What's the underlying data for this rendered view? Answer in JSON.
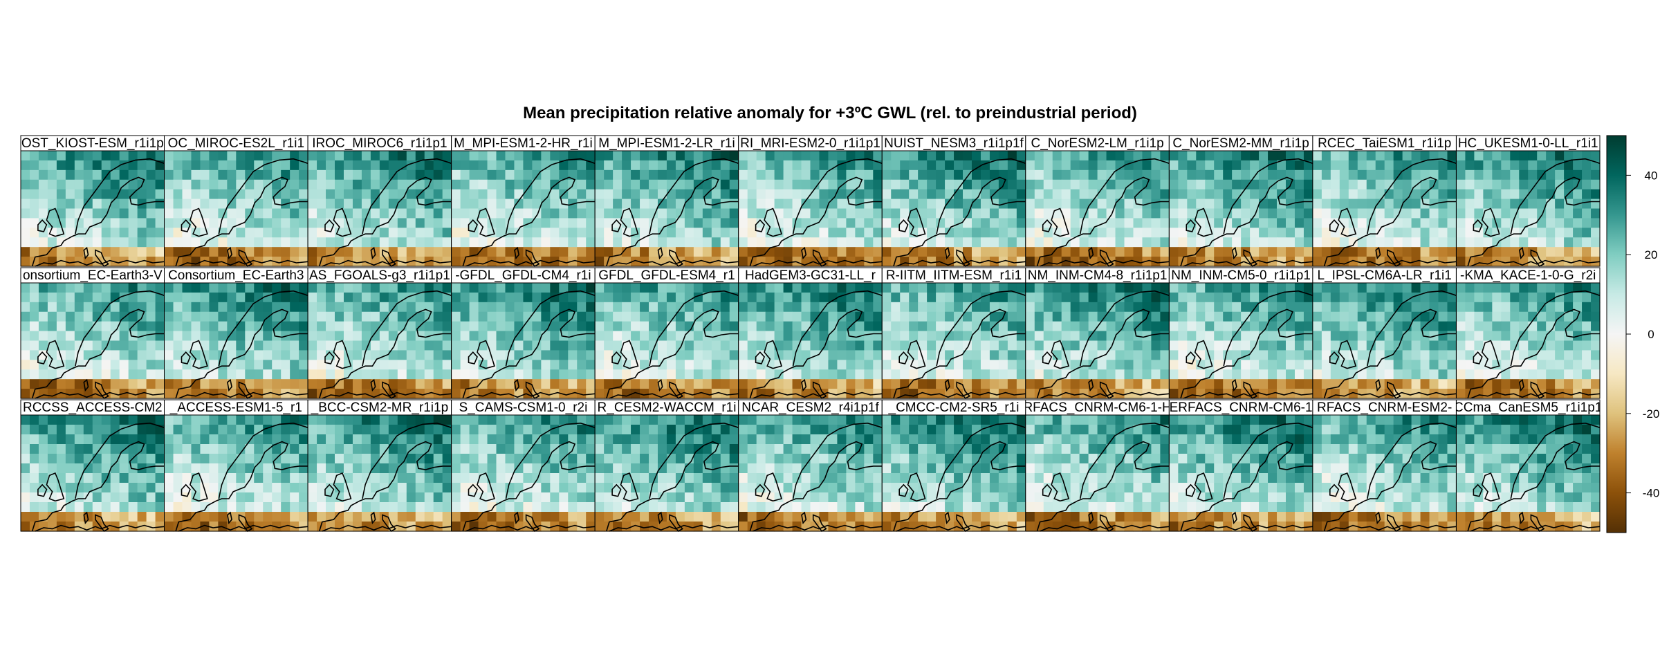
{
  "chart_data": {
    "type": "heatmap",
    "title": "Mean precipitation relative anomaly for +3ºC GWL (rel. to preindustrial period)",
    "panel_titles": [
      "OST_KIOST-ESM_r1i1p",
      "OC_MIROC-ES2L_r1i1",
      "IROC_MIROC6_r1i1p1",
      "M_MPI-ESM1-2-HR_r1i",
      "M_MPI-ESM1-2-LR_r1i",
      "RI_MRI-ESM2-0_r1i1p1",
      "NUIST_NESM3_r1i1p1f",
      "C_NorESM2-LM_r1i1p",
      "C_NorESM2-MM_r1i1p",
      "RCEC_TaiESM1_r1i1p",
      "HC_UKESM1-0-LL_r1i1",
      "onsortium_EC-Earth3-V",
      "Consortium_EC-Earth3",
      "AS_FGOALS-g3_r1i1p1",
      "-GFDL_GFDL-CM4_r1i",
      "GFDL_GFDL-ESM4_r1",
      "HadGEM3-GC31-LL_r",
      "R-IITM_IITM-ESM_r1i1",
      "NM_INM-CM4-8_r1i1p1",
      "NM_INM-CM5-0_r1i1p1",
      "L_IPSL-CM6A-LR_r1i1",
      "-KMA_KACE-1-0-G_r2i",
      "RCCSS_ACCESS-CM2",
      "_ACCESS-ESM1-5_r1",
      "_BCC-CSM2-MR_r1i1p",
      "S_CAMS-CSM1-0_r2i",
      "R_CESM2-WACCM_r1i",
      "NCAR_CESM2_r4i1p1f",
      "_CMCC-CM2-SR5_r1i",
      "RFACS_CNRM-CM6-1-H",
      "ERFACS_CNRM-CM6-1",
      "RFACS_CNRM-ESM2-",
      "CCma_CanESM5_r1i1p1"
    ],
    "colorbar": {
      "range": [
        -50,
        50
      ],
      "ticks": [
        -40,
        -20,
        0,
        20,
        40
      ],
      "tick_labels": [
        "-40",
        "-20",
        "0",
        "20",
        "40"
      ],
      "colors": [
        "#543005",
        "#8c510a",
        "#bf812d",
        "#dfc27d",
        "#f6e8c3",
        "#f5f5f5",
        "#c7eae5",
        "#80cdc1",
        "#35978f",
        "#01665e",
        "#003c30"
      ]
    },
    "grid": false
  }
}
